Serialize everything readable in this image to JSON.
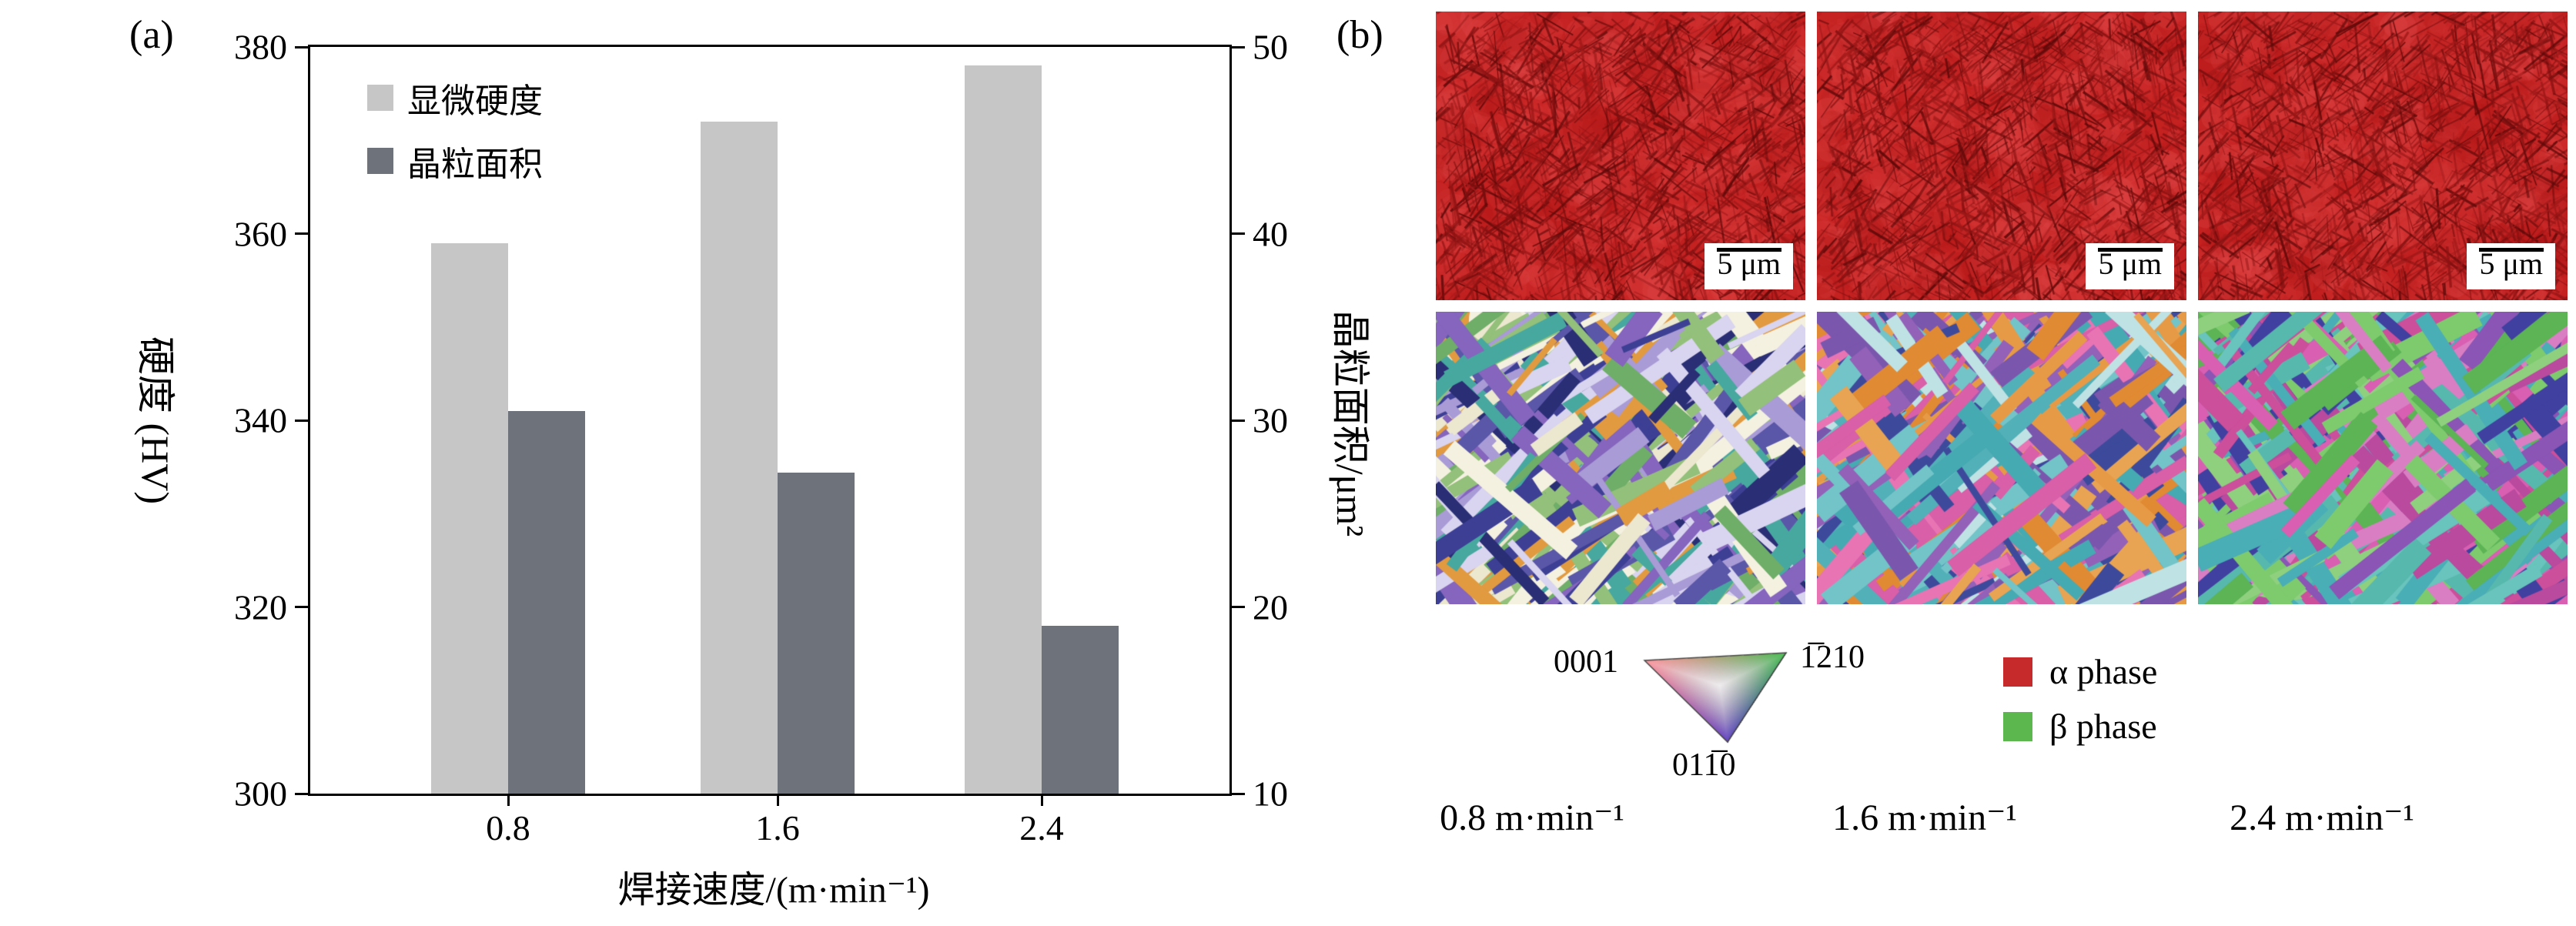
{
  "figure": {
    "panel_a_label": "(a)",
    "panel_b_label": "(b)"
  },
  "chart_data": {
    "type": "bar",
    "categories": [
      "0.8",
      "1.6",
      "2.4"
    ],
    "series": [
      {
        "name": "显微硬度",
        "axis": "left",
        "color": "#c6c6c6",
        "values": [
          359,
          372,
          378
        ]
      },
      {
        "name": "晶粒面积",
        "axis": "right",
        "color": "#6e737b",
        "values": [
          30.5,
          27.2,
          19.0
        ]
      }
    ],
    "left_axis": {
      "label": "硬度 (HV)",
      "min": 300,
      "max": 380,
      "ticks": [
        300,
        320,
        340,
        360,
        380
      ]
    },
    "right_axis": {
      "label": "晶粒面积/μm²",
      "min": 10,
      "max": 50,
      "ticks": [
        10,
        20,
        30,
        40,
        50
      ]
    },
    "xlabel": "焊接速度/(m·min⁻¹)",
    "legend_position": "top-left",
    "grid": false
  },
  "panel_b": {
    "scale_bar_label": "5 μm",
    "ipf_labels": {
      "corner_top_left": "0001",
      "corner_top_right": "1̅210",
      "corner_bottom": "011̅0"
    },
    "phase_legend": [
      {
        "label": "α phase",
        "color": "#c62a2a"
      },
      {
        "label": "β phase",
        "color": "#5cb84e"
      }
    ],
    "columns": [
      "0.8 m·min⁻¹",
      "1.6 m·min⁻¹",
      "2.4 m·min⁻¹"
    ]
  }
}
